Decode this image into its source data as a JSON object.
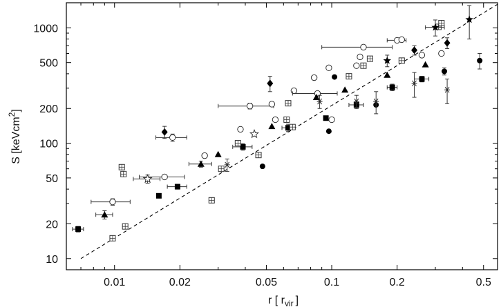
{
  "chart_data": {
    "type": "scatter",
    "title": "",
    "xlabel": "r  [ r",
    "xlabel_sub": "vir",
    "xlabel_end": "]",
    "ylabel": "S  [keVcm",
    "ylabel_sup": "2",
    "ylabel_end": "]",
    "xscale": "log",
    "yscale": "log",
    "xlim": [
      0.006,
      0.58
    ],
    "ylim": [
      8,
      1650
    ],
    "xticks": [
      0.01,
      0.02,
      0.05,
      0.1,
      0.2,
      0.5
    ],
    "xtick_labels": [
      "0.01",
      "0.02",
      "0.05",
      "0.1",
      "0.2",
      "0.5"
    ],
    "yticks": [
      10,
      20,
      50,
      100,
      200,
      500,
      1000
    ],
    "ytick_labels": [
      "10",
      "20",
      "50",
      "100",
      "200",
      "500",
      "1000"
    ],
    "grid": false,
    "legend": "none",
    "reference_line": {
      "style": "dashed",
      "x": [
        0.007,
        0.58
      ],
      "y": [
        10,
        1600
      ]
    },
    "series": [
      {
        "marker": "square-filled",
        "points": [
          {
            "x": 0.0068,
            "y": 18,
            "xerr": 0.0004,
            "yerr": 1
          },
          {
            "x": 0.016,
            "y": 35
          },
          {
            "x": 0.0195,
            "y": 42,
            "xerr": 0.002,
            "yerr": 2
          },
          {
            "x": 0.039,
            "y": 93,
            "xerr": 0.004,
            "yerr": 6
          },
          {
            "x": 0.063,
            "y": 136,
            "xerr": 0.004,
            "yerr": 10
          },
          {
            "x": 0.094,
            "y": 165
          },
          {
            "x": 0.13,
            "y": 215,
            "xerr": 0.01,
            "yerr": 15
          },
          {
            "x": 0.19,
            "y": 305,
            "xerr": 0.01,
            "yerr": 20
          },
          {
            "x": 0.26,
            "y": 360,
            "xerr": 0.02,
            "yerr": 20
          }
        ]
      },
      {
        "marker": "square-cross",
        "points": [
          {
            "x": 0.0098,
            "y": 15
          },
          {
            "x": 0.0112,
            "y": 19
          },
          {
            "x": 0.0108,
            "y": 62
          },
          {
            "x": 0.011,
            "y": 54
          },
          {
            "x": 0.028,
            "y": 32
          },
          {
            "x": 0.031,
            "y": 60
          },
          {
            "x": 0.037,
            "y": 100
          },
          {
            "x": 0.046,
            "y": 79
          },
          {
            "x": 0.062,
            "y": 160
          },
          {
            "x": 0.063,
            "y": 222
          },
          {
            "x": 0.066,
            "y": 138
          },
          {
            "x": 0.12,
            "y": 380
          },
          {
            "x": 0.14,
            "y": 470
          },
          {
            "x": 0.15,
            "y": 540
          },
          {
            "x": 0.21,
            "y": 520
          },
          {
            "x": 0.31,
            "y": 1020
          },
          {
            "x": 0.32,
            "y": 1100
          }
        ]
      },
      {
        "marker": "circle-open",
        "points": [
          {
            "x": 0.0098,
            "y": 31,
            "xerr": 0.002,
            "yerr": 2
          },
          {
            "x": 0.017,
            "y": 51,
            "xerr": 0.004,
            "yerr": 2
          },
          {
            "x": 0.0185,
            "y": 112,
            "xerr": 0.003,
            "yerr": 8
          },
          {
            "x": 0.026,
            "y": 78
          },
          {
            "x": 0.038,
            "y": 132
          },
          {
            "x": 0.042,
            "y": 210,
            "xerr": 0.012,
            "yerr": 12
          },
          {
            "x": 0.053,
            "y": 218
          },
          {
            "x": 0.055,
            "y": 160
          },
          {
            "x": 0.067,
            "y": 285
          },
          {
            "x": 0.083,
            "y": 370
          },
          {
            "x": 0.086,
            "y": 270,
            "xerr": 0.02
          },
          {
            "x": 0.097,
            "y": 450
          },
          {
            "x": 0.1,
            "y": 160
          },
          {
            "x": 0.13,
            "y": 470
          },
          {
            "x": 0.135,
            "y": 560
          },
          {
            "x": 0.14,
            "y": 680,
            "xerr": 0.05
          },
          {
            "x": 0.2,
            "y": 780,
            "xerr": 0.02
          },
          {
            "x": 0.21,
            "y": 790
          },
          {
            "x": 0.26,
            "y": 580
          },
          {
            "x": 0.32,
            "y": 600
          }
        ]
      },
      {
        "marker": "circle-filled",
        "points": [
          {
            "x": 0.048,
            "y": 63
          },
          {
            "x": 0.097,
            "y": 127
          },
          {
            "x": 0.103,
            "y": 375
          },
          {
            "x": 0.16,
            "y": 215
          },
          {
            "x": 0.33,
            "y": 420,
            "yerr": 30
          },
          {
            "x": 0.48,
            "y": 520,
            "yerr": 80
          }
        ]
      },
      {
        "marker": "diamond-filled",
        "points": [
          {
            "x": 0.017,
            "y": 125,
            "yerr": 15
          },
          {
            "x": 0.052,
            "y": 330,
            "yerr": 50
          },
          {
            "x": 0.24,
            "y": 640,
            "yerr": 60
          },
          {
            "x": 0.34,
            "y": 740,
            "yerr": 80
          }
        ]
      },
      {
        "marker": "triangle-filled",
        "points": [
          {
            "x": 0.009,
            "y": 24,
            "xerr": 0.0008,
            "yerr": 2
          },
          {
            "x": 0.025,
            "y": 66,
            "xerr": 0.003,
            "yerr": 4
          },
          {
            "x": 0.03,
            "y": 80
          },
          {
            "x": 0.053,
            "y": 140
          },
          {
            "x": 0.085,
            "y": 250
          },
          {
            "x": 0.115,
            "y": 290
          },
          {
            "x": 0.18,
            "y": 390
          },
          {
            "x": 0.27,
            "y": 480
          }
        ]
      },
      {
        "marker": "star-open",
        "points": [
          {
            "x": 0.0142,
            "y": 49,
            "xerr": 0.002,
            "yerr": 4
          },
          {
            "x": 0.044,
            "y": 120
          }
        ]
      },
      {
        "marker": "asterisk",
        "points": [
          {
            "x": 0.033,
            "y": 65,
            "yerr": 8
          },
          {
            "x": 0.088,
            "y": 230,
            "yerr": 30
          },
          {
            "x": 0.13,
            "y": 230,
            "yerr": 30
          },
          {
            "x": 0.16,
            "y": 230,
            "yerr": 50
          },
          {
            "x": 0.24,
            "y": 330,
            "yerr": 80
          },
          {
            "x": 0.34,
            "y": 290,
            "yerr": 70
          }
        ]
      },
      {
        "marker": "star-filled",
        "points": [
          {
            "x": 0.18,
            "y": 520,
            "yerr": 60
          },
          {
            "x": 0.3,
            "y": 1010,
            "xerr": 0.03,
            "yerr": 160
          },
          {
            "x": 0.43,
            "y": 1180,
            "yerr": 380
          }
        ]
      }
    ]
  }
}
